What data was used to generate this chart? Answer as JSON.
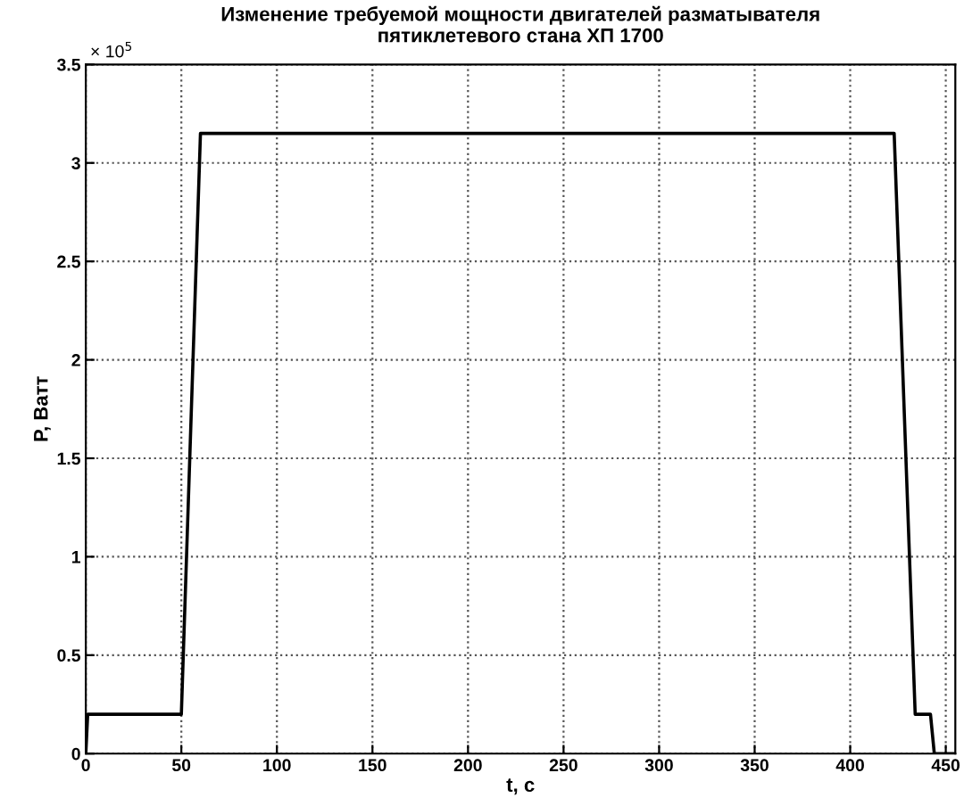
{
  "chart_data": {
    "type": "line",
    "title": "Изменение требуемой мощности двигателей разматывателя\nпятиклетевого стана ХП 1700",
    "xlabel": "t, c",
    "ylabel": "P, Ватт",
    "annotations": [
      "× 10$^{5}$"
    ],
    "series": [
      {
        "color": "#000000",
        "x": [
          0,
          1,
          50,
          60,
          423,
          434,
          442,
          444,
          455
        ],
        "values": [
          0,
          0.2,
          0.2,
          3.15,
          3.15,
          0.2,
          0.2,
          0,
          0
        ]
      }
    ],
    "xlim": [
      0,
      455
    ],
    "xticks": [
      0,
      50,
      100,
      150,
      200,
      250,
      300,
      350,
      400,
      450
    ],
    "ylim": [
      0,
      3.5
    ],
    "yticks": [
      0,
      0.5,
      1,
      1.5,
      2,
      2.5,
      3,
      3.5
    ],
    "grid": true,
    "line_style": "solid"
  }
}
